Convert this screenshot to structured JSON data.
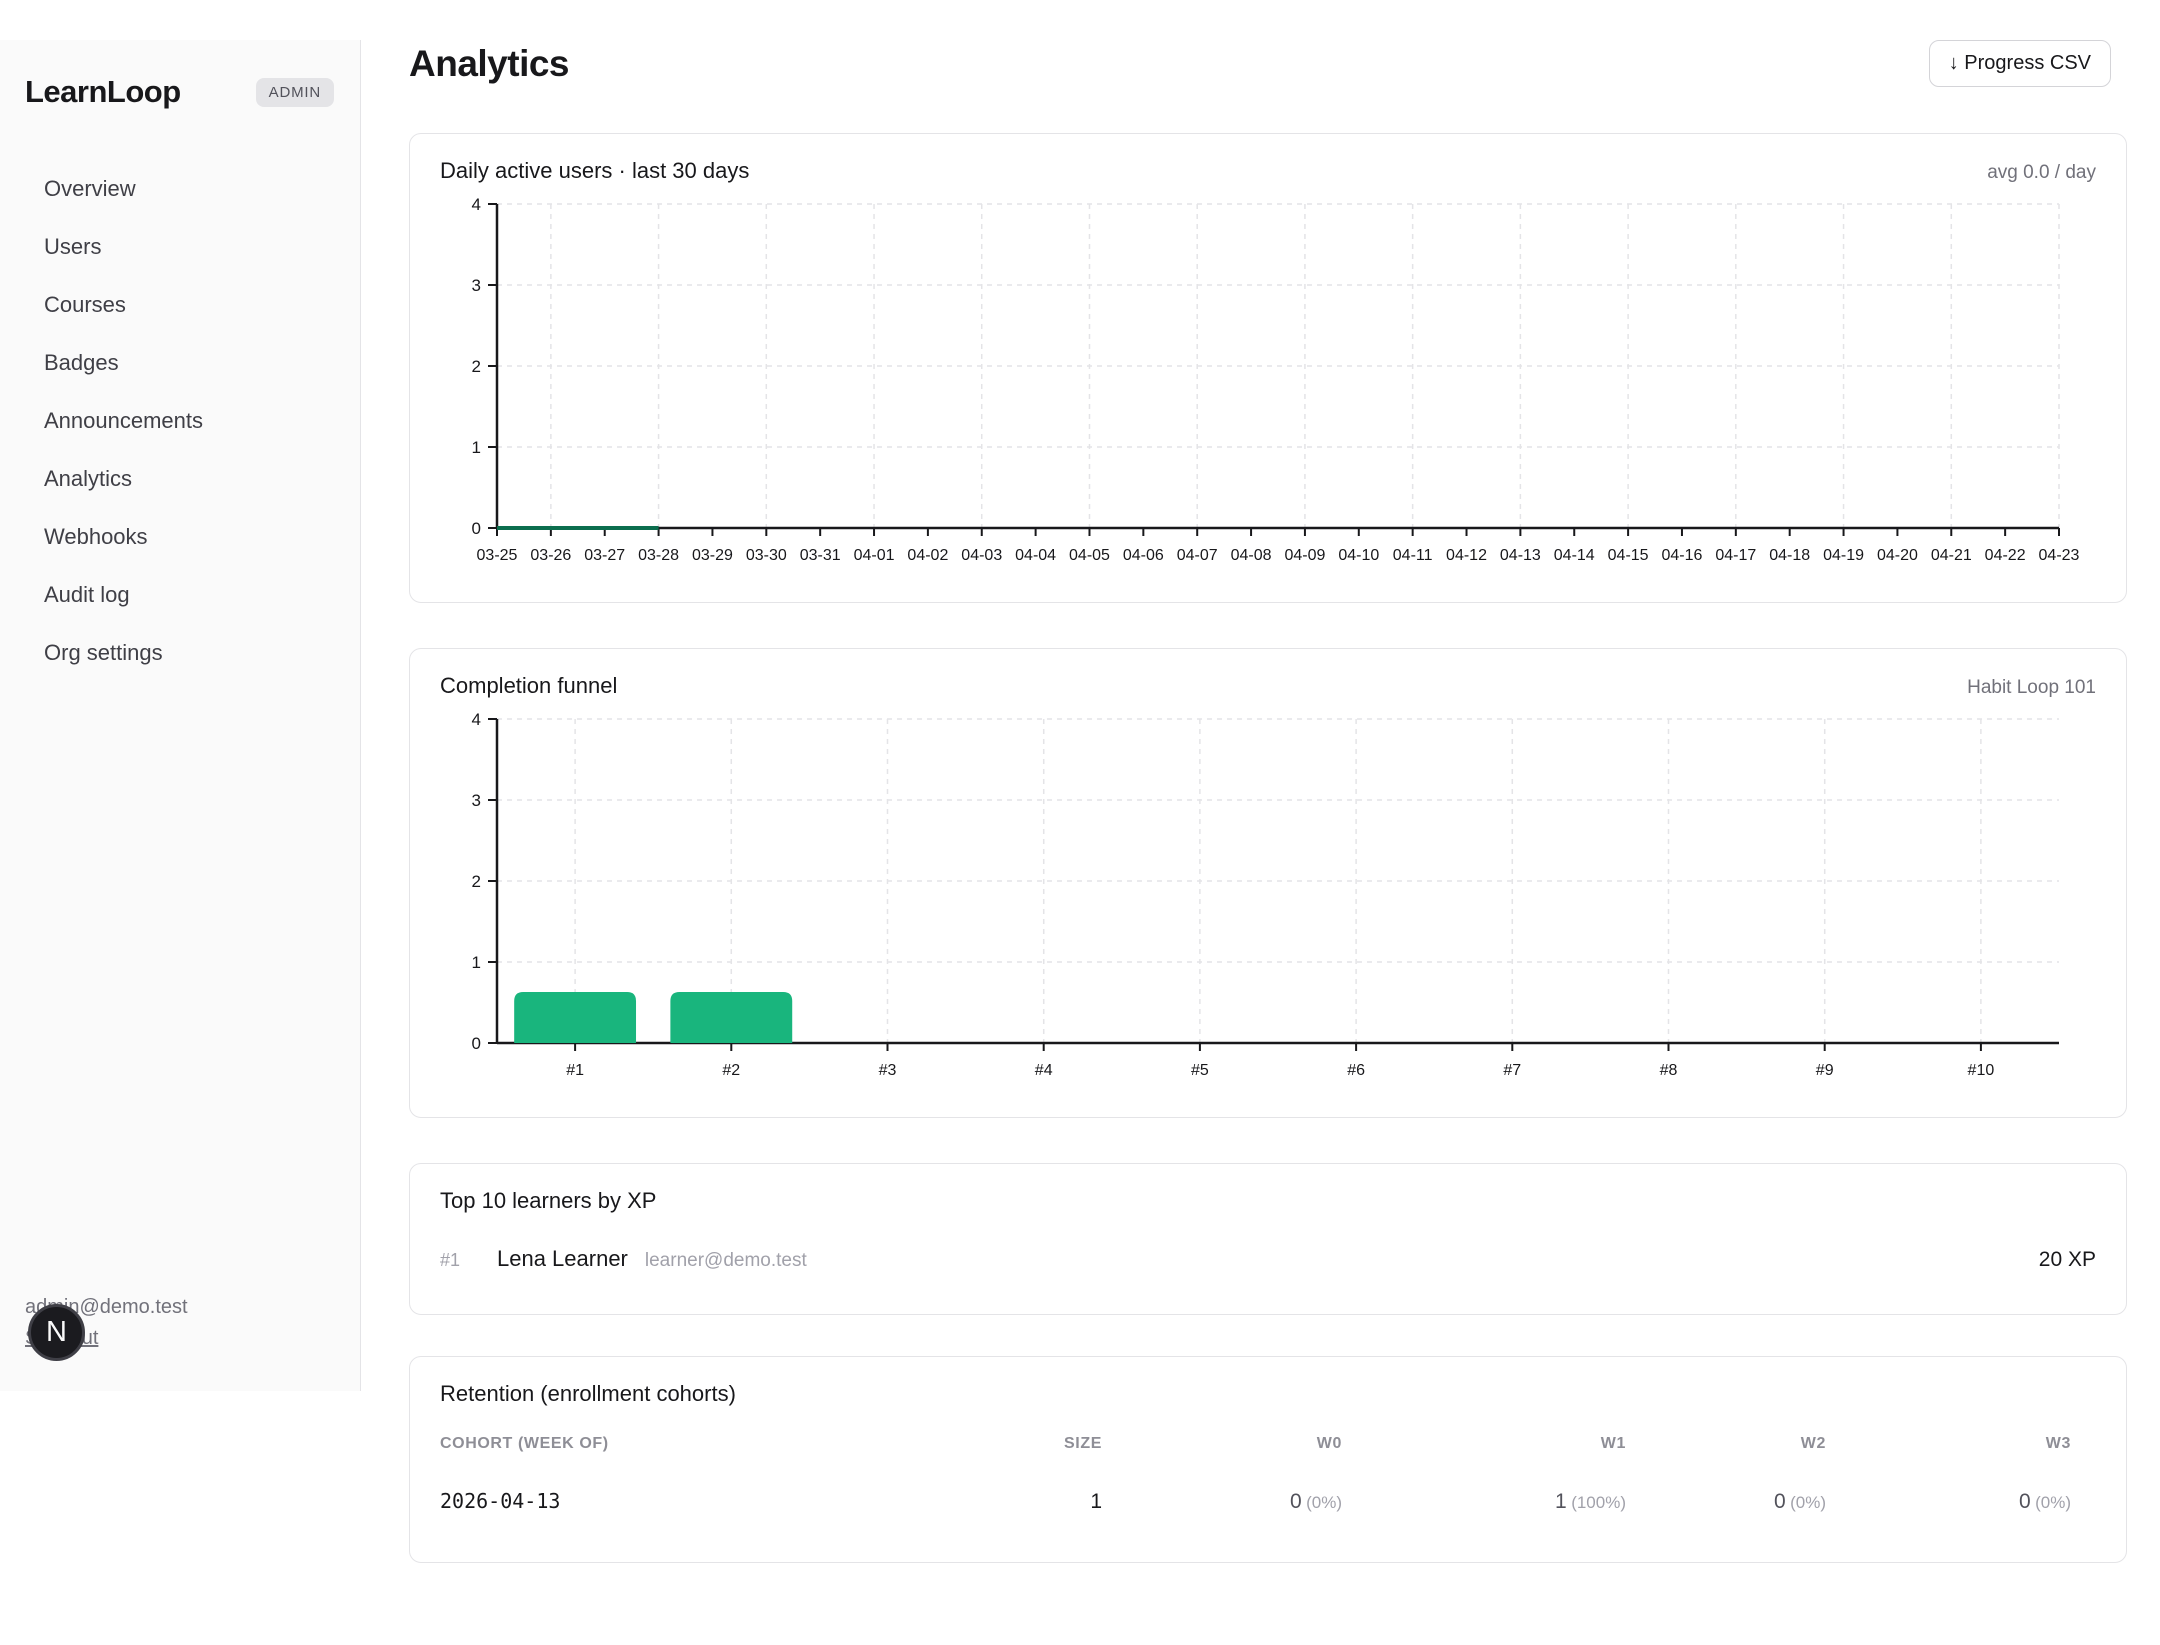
{
  "sidebar": {
    "brand": "LearnLoop",
    "badge": "ADMIN",
    "items": [
      "Overview",
      "Users",
      "Courses",
      "Badges",
      "Announcements",
      "Analytics",
      "Webhooks",
      "Audit log",
      "Org settings"
    ],
    "footer": {
      "email": "admin@demo.test",
      "signout": "Sign out",
      "avatar_initial": "N"
    }
  },
  "header": {
    "title": "Analytics",
    "export_button": "↓ Progress CSV"
  },
  "top_learners": {
    "title": "Top 10 learners by XP",
    "rows": [
      {
        "rank": "#1",
        "name": "Lena Learner",
        "email": "learner@demo.test",
        "xp": "20 XP"
      }
    ]
  },
  "retention": {
    "title": "Retention (enrollment cohorts)",
    "columns": [
      "COHORT (WEEK OF)",
      "SIZE",
      "W0",
      "W1",
      "W2",
      "W3"
    ],
    "rows": [
      {
        "cohort": "2026-04-13",
        "size": "1",
        "w0": "0",
        "w0_pct": "(0%)",
        "w1": "1",
        "w1_pct": "(100%)",
        "w2": "0",
        "w2_pct": "(0%)",
        "w3": "0",
        "w3_pct": "(0%)"
      }
    ]
  },
  "chart_data": [
    {
      "type": "line",
      "title": "Daily active users · last 30 days",
      "annotation": "avg 0.0 / day",
      "x": [
        "03-25",
        "03-26",
        "03-27",
        "03-28",
        "03-29",
        "03-30",
        "03-31",
        "04-01",
        "04-02",
        "04-03",
        "04-04",
        "04-05",
        "04-06",
        "04-07",
        "04-08",
        "04-09",
        "04-10",
        "04-11",
        "04-12",
        "04-13",
        "04-14",
        "04-15",
        "04-16",
        "04-17",
        "04-18",
        "04-19",
        "04-20",
        "04-21",
        "04-22",
        "04-23"
      ],
      "values": [
        0,
        0,
        0,
        0,
        null,
        null,
        null,
        null,
        null,
        null,
        null,
        null,
        null,
        null,
        null,
        null,
        null,
        null,
        null,
        null,
        null,
        null,
        null,
        null,
        null,
        null,
        null,
        null,
        null,
        null
      ],
      "xlabel": "",
      "ylabel": "",
      "ylim": [
        0,
        4
      ],
      "yticks": [
        0,
        1,
        2,
        3,
        4
      ],
      "grid": true,
      "legend": "none",
      "line_color": "#0c6e4e"
    },
    {
      "type": "bar",
      "title": "Completion funnel",
      "annotation": "Habit Loop 101",
      "categories": [
        "#1",
        "#2",
        "#3",
        "#4",
        "#5",
        "#6",
        "#7",
        "#8",
        "#9",
        "#10"
      ],
      "values": [
        0.63,
        0.63,
        0,
        0,
        0,
        0,
        0,
        0,
        0,
        0
      ],
      "xlabel": "",
      "ylabel": "",
      "ylim": [
        0,
        4
      ],
      "yticks": [
        0,
        1,
        2,
        3,
        4
      ],
      "grid": true,
      "legend": "none",
      "bar_color": "#19b57d"
    }
  ],
  "chart_style": {
    "axis_color": "#18181b",
    "grid_color": "#e4e4e7",
    "tick_label_color": "#18181b"
  }
}
